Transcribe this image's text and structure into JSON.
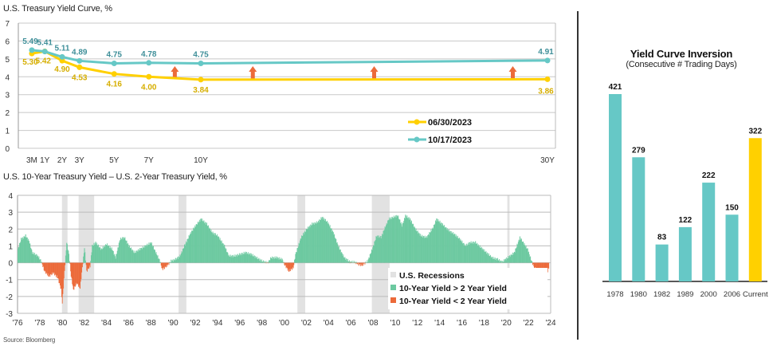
{
  "source": "Source: Bloomberg",
  "colors": {
    "yellow": "#FFD000",
    "teal": "#66C8C6",
    "green": "#6CC9A0",
    "red": "#EC6A3A",
    "recession": "#E2E2E2",
    "arrow": "#EC6A3A",
    "label_yellow": "#D6AE00",
    "label_teal": "#3F8F99"
  },
  "chart_data": [
    {
      "type": "line",
      "title": "U.S. Treasury Yield Curve, %",
      "ylim": [
        0,
        7
      ],
      "yticks": [
        0,
        1,
        2,
        3,
        4,
        5,
        6,
        7
      ],
      "grid": true,
      "legend": "bottom-right",
      "x_labels": [
        "3M",
        "1Y",
        "2Y",
        "3Y",
        "5Y",
        "7Y",
        "10Y",
        "30Y"
      ],
      "x": [
        0.25,
        1,
        2,
        3,
        5,
        7,
        10,
        30
      ],
      "series": [
        {
          "name": "06/30/2023",
          "color": "#FFD000",
          "values": [
            5.3,
            5.42,
            4.9,
            4.53,
            4.16,
            4.0,
            3.84,
            3.86
          ],
          "labels": [
            "5.30",
            "5.42",
            "4.90",
            "4.53",
            "4.16",
            "4.00",
            "3.84",
            "3.86"
          ]
        },
        {
          "name": "10/17/2023",
          "color": "#66C8C6",
          "values": [
            5.49,
            5.41,
            5.11,
            4.89,
            4.75,
            4.78,
            4.75,
            4.91
          ],
          "labels": [
            "5.49",
            "5.41",
            "5.11",
            "4.89",
            "4.75",
            "4.78",
            "4.75",
            "4.91"
          ]
        }
      ],
      "arrows_at_maturity": [
        8.5,
        13,
        20,
        28
      ]
    },
    {
      "type": "area",
      "title": "U.S. 10-Year Treasury Yield – U.S. 2-Year Treasury Yield, %",
      "ylim": [
        -3,
        4
      ],
      "yticks": [
        -3,
        -2,
        -1,
        0,
        1,
        2,
        3,
        4
      ],
      "xlim": [
        1976,
        2024
      ],
      "xticks": [
        "'76",
        "'78",
        "'80",
        "'82",
        "'84",
        "'86",
        "'88",
        "'90",
        "'92",
        "'94",
        "'96",
        "'98",
        "'00",
        "'02",
        "'04",
        "'06",
        "'08",
        "'10",
        "'12",
        "'14",
        "'16",
        "'18",
        "'20",
        "'22",
        "'24"
      ],
      "legend": [
        "U.S. Recessions",
        "10-Year Yield > 2 Year Yield",
        "10-Year Yield < 2 Year Yield"
      ],
      "recessions": [
        [
          1980.0,
          1980.5
        ],
        [
          1981.5,
          1982.9
        ],
        [
          1990.5,
          1991.2
        ],
        [
          2001.2,
          2001.9
        ],
        [
          2007.9,
          2009.5
        ],
        [
          2020.1,
          2020.3
        ]
      ],
      "points": [
        [
          1976.0,
          0.8
        ],
        [
          1976.3,
          1.4
        ],
        [
          1976.7,
          1.6
        ],
        [
          1977.0,
          1.3
        ],
        [
          1977.3,
          0.6
        ],
        [
          1977.8,
          0.4
        ],
        [
          1978.1,
          0.1
        ],
        [
          1978.4,
          -0.5
        ],
        [
          1978.8,
          -0.8
        ],
        [
          1979.2,
          -0.6
        ],
        [
          1979.6,
          -0.9
        ],
        [
          1979.9,
          -1.6
        ],
        [
          1980.0,
          -2.4
        ],
        [
          1980.2,
          -0.5
        ],
        [
          1980.4,
          1.2
        ],
        [
          1980.6,
          0.5
        ],
        [
          1980.8,
          -0.8
        ],
        [
          1981.0,
          -1.6
        ],
        [
          1981.3,
          -1.2
        ],
        [
          1981.6,
          -1.5
        ],
        [
          1981.8,
          -0.3
        ],
        [
          1982.0,
          0.9
        ],
        [
          1982.2,
          -0.5
        ],
        [
          1982.5,
          -0.2
        ],
        [
          1982.7,
          1.0
        ],
        [
          1983.0,
          1.2
        ],
        [
          1983.5,
          0.8
        ],
        [
          1984.0,
          1.1
        ],
        [
          1984.5,
          0.8
        ],
        [
          1984.8,
          0.3
        ],
        [
          1985.2,
          1.4
        ],
        [
          1985.6,
          1.5
        ],
        [
          1986.0,
          1.0
        ],
        [
          1986.5,
          0.6
        ],
        [
          1987.0,
          0.8
        ],
        [
          1987.5,
          1.0
        ],
        [
          1988.0,
          1.2
        ],
        [
          1988.5,
          0.5
        ],
        [
          1988.8,
          0.1
        ],
        [
          1989.0,
          -0.4
        ],
        [
          1989.4,
          -0.2
        ],
        [
          1989.8,
          0.1
        ],
        [
          1990.2,
          0.2
        ],
        [
          1990.6,
          0.4
        ],
        [
          1991.0,
          1.0
        ],
        [
          1991.5,
          1.7
        ],
        [
          1992.0,
          2.2
        ],
        [
          1992.5,
          2.6
        ],
        [
          1993.0,
          2.3
        ],
        [
          1993.5,
          1.8
        ],
        [
          1994.0,
          1.6
        ],
        [
          1994.6,
          1.0
        ],
        [
          1995.0,
          0.4
        ],
        [
          1995.5,
          0.4
        ],
        [
          1996.0,
          0.5
        ],
        [
          1996.5,
          0.6
        ],
        [
          1997.0,
          0.5
        ],
        [
          1997.5,
          0.3
        ],
        [
          1998.0,
          0.1
        ],
        [
          1998.5,
          0.0
        ],
        [
          1998.8,
          0.3
        ],
        [
          1999.3,
          0.3
        ],
        [
          1999.8,
          0.2
        ],
        [
          2000.0,
          -0.1
        ],
        [
          2000.4,
          -0.5
        ],
        [
          2000.8,
          -0.3
        ],
        [
          2001.0,
          0.5
        ],
        [
          2001.5,
          1.5
        ],
        [
          2002.0,
          2.0
        ],
        [
          2002.5,
          2.3
        ],
        [
          2003.0,
          2.4
        ],
        [
          2003.4,
          2.7
        ],
        [
          2003.9,
          2.4
        ],
        [
          2004.4,
          1.8
        ],
        [
          2004.9,
          0.9
        ],
        [
          2005.4,
          0.3
        ],
        [
          2005.9,
          0.05
        ],
        [
          2006.3,
          0.05
        ],
        [
          2006.7,
          -0.1
        ],
        [
          2007.0,
          -0.15
        ],
        [
          2007.5,
          0.1
        ],
        [
          2007.9,
          0.8
        ],
        [
          2008.3,
          1.6
        ],
        [
          2008.7,
          1.5
        ],
        [
          2009.0,
          2.0
        ],
        [
          2009.4,
          2.6
        ],
        [
          2009.8,
          2.7
        ],
        [
          2010.2,
          2.8
        ],
        [
          2010.6,
          2.2
        ],
        [
          2010.9,
          2.8
        ],
        [
          2011.3,
          2.6
        ],
        [
          2011.8,
          2.0
        ],
        [
          2012.3,
          1.6
        ],
        [
          2012.8,
          1.5
        ],
        [
          2013.4,
          2.1
        ],
        [
          2013.7,
          2.6
        ],
        [
          2014.2,
          2.3
        ],
        [
          2014.8,
          1.9
        ],
        [
          2015.3,
          1.7
        ],
        [
          2015.8,
          1.4
        ],
        [
          2016.3,
          1.0
        ],
        [
          2016.7,
          1.2
        ],
        [
          2017.2,
          1.2
        ],
        [
          2017.7,
          0.9
        ],
        [
          2018.2,
          0.6
        ],
        [
          2018.7,
          0.3
        ],
        [
          2019.2,
          0.2
        ],
        [
          2019.6,
          0.05
        ],
        [
          2019.9,
          0.2
        ],
        [
          2020.3,
          0.4
        ],
        [
          2020.7,
          0.6
        ],
        [
          2021.2,
          1.5
        ],
        [
          2021.5,
          1.2
        ],
        [
          2021.9,
          0.8
        ],
        [
          2022.2,
          0.2
        ],
        [
          2022.5,
          -0.3
        ],
        [
          2022.9,
          -0.6
        ],
        [
          2023.2,
          -1.0
        ],
        [
          2023.5,
          -0.9
        ],
        [
          2023.8,
          -0.3
        ]
      ]
    },
    {
      "type": "bar",
      "title": "Yield Curve Inversion",
      "subtitle": "(Consecutive # Trading Days)",
      "categories": [
        "1978",
        "1980",
        "1982",
        "1989",
        "2000",
        "2006",
        "Current"
      ],
      "values": [
        421,
        279,
        83,
        122,
        222,
        150,
        322
      ],
      "colors": [
        "#66C8C6",
        "#66C8C6",
        "#66C8C6",
        "#66C8C6",
        "#66C8C6",
        "#66C8C6",
        "#FFD000"
      ]
    }
  ]
}
